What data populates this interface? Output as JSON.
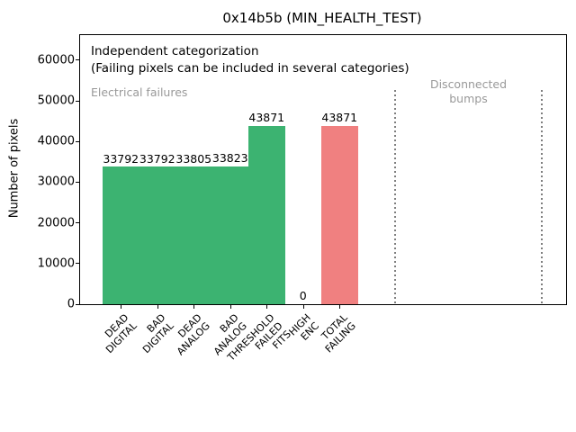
{
  "figure": {
    "title": "0x14b5b (MIN_HEALTH_TEST)",
    "ylabel": "Number of pixels",
    "note_line1": "Independent categorization",
    "note_line2": "(Failing pixels can be included in several categories)",
    "region_left_label": "Electrical failures",
    "region_right_label_line1": "Disconnected",
    "region_right_label_line2": "bumps"
  },
  "chart_data": {
    "type": "bar",
    "title": "0x14b5b (MIN_HEALTH_TEST)",
    "xlabel": "",
    "ylabel": "Number of pixels",
    "categories": [
      "DEAD DIGITAL",
      "BAD DIGITAL",
      "DEAD ANALOG",
      "BAD ANALOG",
      "THRESHOLD FAILED FITS",
      "HIGH ENC",
      "TOTAL FAILING"
    ],
    "category_lines": [
      [
        "DEAD",
        "DIGITAL"
      ],
      [
        "BAD",
        "DIGITAL"
      ],
      [
        "DEAD",
        "ANALOG"
      ],
      [
        "BAD",
        "ANALOG"
      ],
      [
        "THRESHOLD",
        "FAILED",
        "FITS"
      ],
      [
        "HIGH",
        "ENC"
      ],
      [
        "TOTAL",
        "FAILING"
      ]
    ],
    "values": [
      33792,
      33792,
      33805,
      33823,
      43871,
      0,
      43871
    ],
    "value_labels": [
      "33792",
      "33792",
      "33805",
      "33823",
      "43871",
      "0",
      "43871"
    ],
    "bar_colors": [
      "#3cb371",
      "#3cb371",
      "#3cb371",
      "#3cb371",
      "#3cb371",
      "#3cb371",
      "#f08080"
    ],
    "yticks": [
      0,
      10000,
      20000,
      30000,
      40000,
      50000,
      60000
    ],
    "ylim": [
      0,
      66200
    ],
    "grid": false,
    "legend_position": "none",
    "annotations": [
      "Independent categorization",
      "(Failing pixels can be included in several categories)",
      "Electrical failures",
      "Disconnected bumps"
    ],
    "region_separators_note": "dotted vertical lines mark the empty 'Disconnected bumps' region at right of the axis"
  },
  "colors": {
    "bar_green": "#3cb371",
    "bar_pink": "#f08080",
    "muted_text": "#999999",
    "dotted_line": "#7f7f7f",
    "axis": "#000000",
    "background": "#ffffff"
  }
}
